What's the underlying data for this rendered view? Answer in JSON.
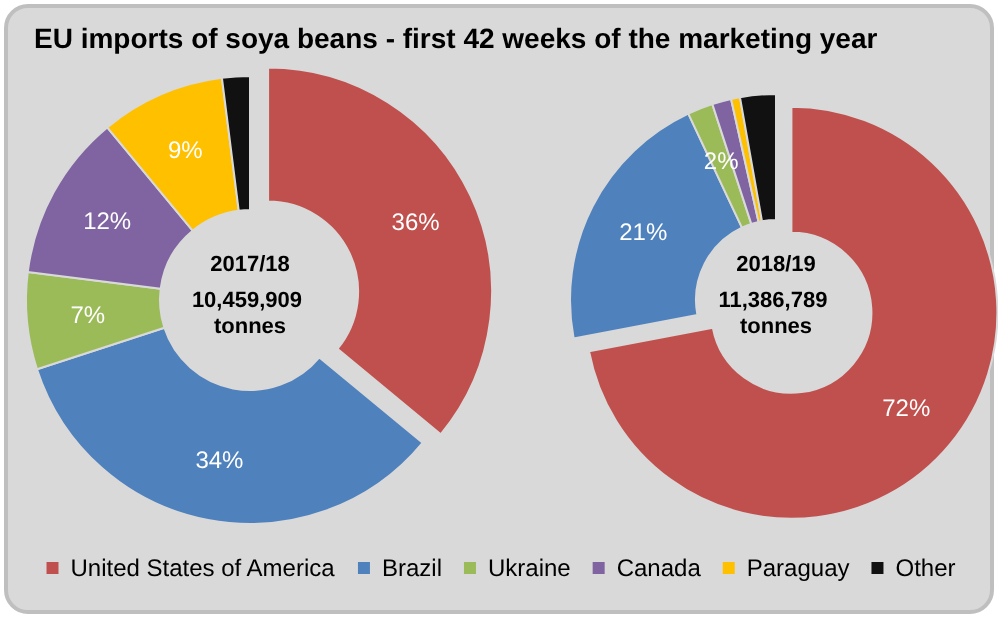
{
  "chart_data": {
    "type": "donut",
    "title": "EU imports of soya beans - first 42 weeks of the marketing year",
    "categories": [
      "United States of America",
      "Brazil",
      "Ukraine",
      "Canada",
      "Paraguay",
      "Other"
    ],
    "colors": [
      "#c0504d",
      "#4f81bd",
      "#9bbb59",
      "#8064a2",
      "#ffc000",
      "#111111"
    ],
    "series": [
      {
        "values": [
          36,
          34,
          7,
          12,
          9,
          2
        ],
        "value_labels": [
          "36%",
          "34%",
          "7%",
          "12%",
          "9%",
          null
        ]
      },
      {
        "values": [
          72,
          21,
          2,
          1.5,
          0.7,
          2.8
        ],
        "value_labels": [
          "72%",
          "21%",
          "2%",
          null,
          null,
          null
        ]
      }
    ],
    "annotations": [
      "2017/18",
      "10,459,909 tonnes",
      "2018/19",
      "11,386,789 tonnes"
    ],
    "legend": "bottom"
  }
}
